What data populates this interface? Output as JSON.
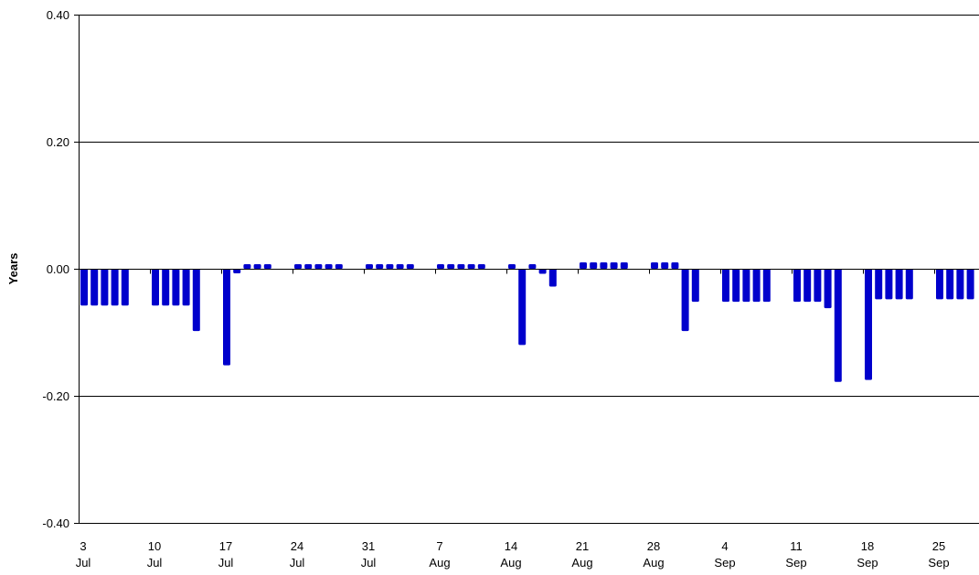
{
  "chart_data": {
    "type": "bar",
    "title": "",
    "xlabel": "",
    "ylabel": "Years",
    "ylim": [
      -0.4,
      0.4
    ],
    "y_ticks": [
      0.4,
      0.2,
      0.0,
      -0.2,
      -0.4
    ],
    "y_tick_labels": [
      "0.40",
      "0.20",
      "0.00",
      "-0.20",
      "-0.40"
    ],
    "grid": "horizontal",
    "bar_color": "#0000CC",
    "x_tick_labels": [
      {
        "day": "3",
        "month": "Jul"
      },
      {
        "day": "10",
        "month": "Jul"
      },
      {
        "day": "17",
        "month": "Jul"
      },
      {
        "day": "24",
        "month": "Jul"
      },
      {
        "day": "31",
        "month": "Jul"
      },
      {
        "day": "7",
        "month": "Aug"
      },
      {
        "day": "14",
        "month": "Aug"
      },
      {
        "day": "21",
        "month": "Aug"
      },
      {
        "day": "28",
        "month": "Aug"
      },
      {
        "day": "4",
        "month": "Sep"
      },
      {
        "day": "11",
        "month": "Sep"
      },
      {
        "day": "18",
        "month": "Sep"
      },
      {
        "day": "25",
        "month": "Sep"
      }
    ],
    "weeks": [
      [
        -0.058,
        -0.058,
        -0.058,
        -0.058,
        -0.058
      ],
      [
        -0.058,
        -0.058,
        -0.058,
        -0.058,
        -0.098
      ],
      [
        -0.152,
        -0.003,
        0.003,
        0.003,
        0.003
      ],
      [
        0.003,
        0.003,
        0.003,
        0.003,
        0.003
      ],
      [
        0.003,
        0.005,
        0.005,
        0.005,
        0.005
      ],
      [
        0.005,
        0.005,
        0.003,
        0.0,
        0.005
      ],
      [
        0.005,
        -0.12,
        0.005,
        -0.008,
        -0.028
      ],
      [
        0.01,
        0.01,
        0.01,
        0.01,
        0.01
      ],
      [
        0.01,
        0.01,
        0.01,
        -0.098,
        -0.052
      ],
      [
        -0.052,
        -0.052,
        -0.052,
        -0.052,
        -0.052
      ],
      [
        -0.052,
        -0.052,
        -0.052,
        -0.062,
        -0.178
      ],
      [
        -0.175,
        -0.048,
        -0.048,
        -0.048,
        -0.048
      ],
      [
        -0.048,
        -0.048,
        -0.048,
        -0.048,
        -0.048
      ]
    ]
  }
}
